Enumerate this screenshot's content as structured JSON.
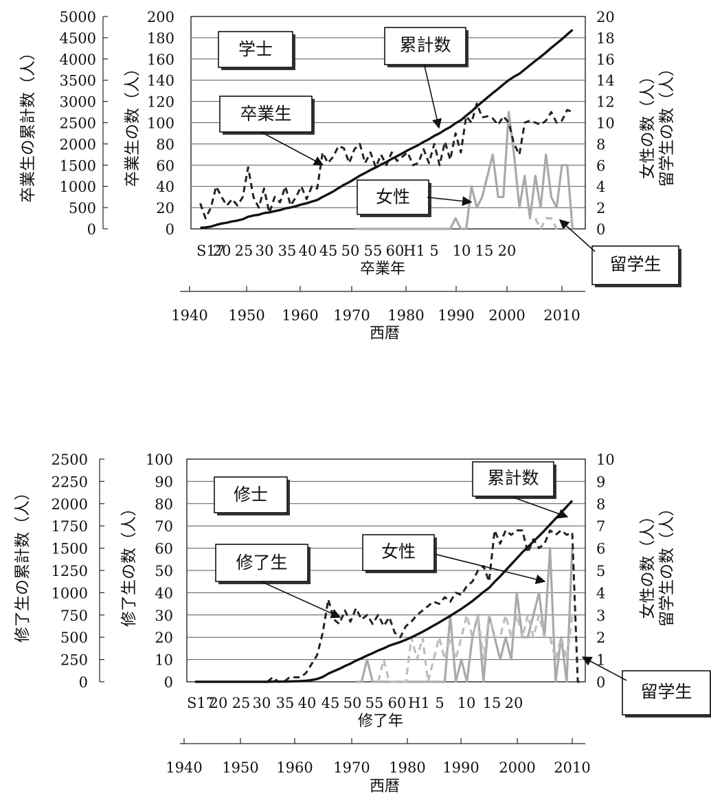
{
  "colors": {
    "graduates": "#222222",
    "cumulative": "#111111",
    "female": "#a9a9a9",
    "international": "#bdbdbd"
  },
  "chart_data": [
    {
      "type": "line",
      "title": "学士",
      "x_era_label": "卒業年",
      "x_year_label": "西暦",
      "era_ticks": [
        "S17",
        "20",
        "25",
        "30",
        "35",
        "40",
        "45",
        "50",
        "55",
        "60",
        "H1",
        "5",
        "10",
        "15",
        "20"
      ],
      "year_ticks": [
        "1940",
        "1950",
        "1960",
        "1970",
        "1980",
        "1990",
        "2000",
        "2010"
      ],
      "y_outer_label": "卒業生の累計数（人）",
      "y_outer_ticks": [
        "0",
        "500",
        "1000",
        "1500",
        "2000",
        "2500",
        "3000",
        "3500",
        "4000",
        "4500",
        "5000"
      ],
      "y_left_label": "卒業生の数（人）",
      "y_left_ticks": [
        "0",
        "20",
        "40",
        "60",
        "80",
        "100",
        "120",
        "140",
        "160",
        "180",
        "200"
      ],
      "y_right_label_1": "女性の数（人）",
      "y_right_label_2": "留学生の数（人）",
      "y_right_ticks": [
        "0",
        "2",
        "4",
        "6",
        "8",
        "10",
        "12",
        "14",
        "16",
        "18",
        "20"
      ],
      "x": [
        1942,
        1943,
        1944,
        1945,
        1946,
        1947,
        1948,
        1949,
        1950,
        1951,
        1952,
        1953,
        1954,
        1955,
        1956,
        1957,
        1958,
        1959,
        1960,
        1961,
        1962,
        1963,
        1964,
        1965,
        1966,
        1967,
        1968,
        1969,
        1970,
        1971,
        1972,
        1973,
        1974,
        1975,
        1976,
        1977,
        1978,
        1979,
        1980,
        1981,
        1982,
        1983,
        1984,
        1985,
        1986,
        1987,
        1988,
        1989,
        1990,
        1991,
        1992,
        1993,
        1994,
        1995,
        1996,
        1997,
        1998,
        1999,
        2000,
        2001,
        2002,
        2003,
        2004,
        2005,
        2006,
        2007,
        2008,
        2009,
        2010,
        2011,
        2012
      ],
      "series": [
        {
          "name": "卒業生",
          "axis": "left",
          "style": "dashed",
          "values": [
            24,
            10,
            20,
            40,
            30,
            22,
            28,
            22,
            30,
            58,
            30,
            20,
            38,
            15,
            30,
            25,
            40,
            22,
            30,
            40,
            28,
            40,
            38,
            72,
            62,
            68,
            78,
            76,
            62,
            75,
            80,
            62,
            72,
            58,
            70,
            60,
            72,
            64,
            68,
            72,
            60,
            62,
            75,
            62,
            80,
            60,
            82,
            65,
            90,
            72,
            106,
            100,
            118,
            105,
            106,
            104,
            98,
            106,
            100,
            80,
            70,
            100,
            102,
            100,
            98,
            102,
            110,
            100,
            102,
            112,
            110
          ]
        },
        {
          "name": "累計数",
          "axis": "outer",
          "style": "solid",
          "values": [
            24,
            34,
            54,
            94,
            124,
            146,
            174,
            196,
            226,
            284,
            314,
            334,
            372,
            387,
            417,
            442,
            482,
            504,
            534,
            574,
            602,
            642,
            680,
            752,
            814,
            882,
            960,
            1036,
            1098,
            1173,
            1253,
            1315,
            1387,
            1445,
            1515,
            1575,
            1647,
            1711,
            1779,
            1851,
            1911,
            1973,
            2048,
            2110,
            2190,
            2250,
            2332,
            2397,
            2487,
            2559,
            2665,
            2765,
            2883,
            2988,
            3094,
            3198,
            3296,
            3402,
            3502,
            3582,
            3652,
            3752,
            3854,
            3954,
            4052,
            4154,
            4264,
            4364,
            4466,
            4578,
            4688
          ]
        },
        {
          "name": "女性",
          "axis": "right",
          "style": "solid",
          "values": [
            null,
            null,
            null,
            null,
            null,
            null,
            null,
            null,
            null,
            null,
            null,
            null,
            null,
            null,
            null,
            null,
            null,
            null,
            null,
            null,
            null,
            null,
            null,
            null,
            null,
            null,
            null,
            null,
            null,
            0,
            0,
            0,
            0,
            0,
            0,
            0,
            0,
            0,
            0,
            0,
            0,
            0,
            0,
            0,
            0,
            0,
            0,
            0,
            1,
            0,
            0,
            4,
            2,
            3,
            5,
            7,
            3,
            3,
            11,
            7,
            2,
            5,
            1,
            5,
            2,
            7,
            3,
            2,
            6,
            6,
            0
          ]
        },
        {
          "name": "留学生",
          "axis": "right",
          "style": "dashed",
          "values": [
            null,
            null,
            null,
            null,
            null,
            null,
            null,
            null,
            null,
            null,
            null,
            null,
            null,
            null,
            null,
            null,
            null,
            null,
            null,
            null,
            null,
            null,
            null,
            null,
            null,
            null,
            null,
            null,
            null,
            null,
            null,
            null,
            null,
            null,
            null,
            null,
            null,
            null,
            null,
            null,
            null,
            null,
            null,
            null,
            null,
            null,
            null,
            null,
            null,
            null,
            null,
            null,
            null,
            null,
            null,
            null,
            null,
            null,
            null,
            null,
            null,
            null,
            null,
            1,
            0,
            1,
            1,
            0,
            0,
            0,
            1
          ]
        }
      ],
      "callouts": {
        "title": "学士",
        "cumulative": "累計数",
        "graduates": "卒業生",
        "female": "女性",
        "international": "留学生"
      }
    },
    {
      "type": "line",
      "title": "修士",
      "x_era_label": "修了年",
      "x_year_label": "西暦",
      "era_ticks": [
        "S17",
        "20",
        "25",
        "30",
        "35",
        "40",
        "45",
        "50",
        "55",
        "60",
        "H1",
        "5",
        "10",
        "15",
        "20"
      ],
      "year_ticks": [
        "1940",
        "1950",
        "1960",
        "1970",
        "1980",
        "1990",
        "2000",
        "2010"
      ],
      "y_outer_label": "修了生の累計数（人）",
      "y_outer_ticks": [
        "0",
        "250",
        "500",
        "750",
        "1000",
        "1250",
        "1500",
        "1750",
        "2000",
        "2250",
        "2500"
      ],
      "y_left_label": "修了生の数（人）",
      "y_left_ticks": [
        "0",
        "10",
        "20",
        "30",
        "40",
        "50",
        "60",
        "70",
        "80",
        "90",
        "100"
      ],
      "y_right_label_1": "女性の数（人）",
      "y_right_label_2": "留学生の数（人）",
      "y_right_ticks": [
        "0",
        "1",
        "2",
        "3",
        "4",
        "5",
        "6",
        "7",
        "8",
        "9",
        "10"
      ],
      "x": [
        1942,
        1943,
        1944,
        1945,
        1946,
        1947,
        1948,
        1949,
        1950,
        1951,
        1952,
        1953,
        1954,
        1955,
        1956,
        1957,
        1958,
        1959,
        1960,
        1961,
        1962,
        1963,
        1964,
        1965,
        1966,
        1967,
        1968,
        1969,
        1970,
        1971,
        1972,
        1973,
        1974,
        1975,
        1976,
        1977,
        1978,
        1979,
        1980,
        1981,
        1982,
        1983,
        1984,
        1985,
        1986,
        1987,
        1988,
        1989,
        1990,
        1991,
        1992,
        1993,
        1994,
        1995,
        1996,
        1997,
        1998,
        1999,
        2000,
        2001,
        2002,
        2003,
        2004,
        2005,
        2006,
        2007,
        2008,
        2009,
        2010,
        2011,
        2012
      ],
      "series": [
        {
          "name": "修了生",
          "axis": "left",
          "style": "dashed",
          "values": [
            0,
            0,
            0,
            0,
            0,
            0,
            0,
            0,
            0,
            0,
            0,
            0,
            0,
            0,
            2,
            0,
            0,
            2,
            2,
            2,
            4,
            8,
            12,
            22,
            37,
            28,
            26,
            32,
            27,
            33,
            28,
            30,
            26,
            30,
            25,
            29,
            22,
            20,
            25,
            27,
            30,
            32,
            34,
            36,
            35,
            38,
            36,
            40,
            39,
            43,
            45,
            50,
            52,
            45,
            68,
            62,
            68,
            66,
            68,
            68,
            58,
            64,
            60,
            62,
            68,
            66,
            68,
            66,
            67,
            0,
            0
          ]
        },
        {
          "name": "累計数",
          "axis": "outer",
          "style": "solid",
          "values": [
            0,
            0,
            0,
            0,
            0,
            0,
            0,
            0,
            0,
            0,
            0,
            0,
            0,
            0,
            2,
            2,
            2,
            4,
            6,
            8,
            12,
            20,
            32,
            54,
            91,
            119,
            145,
            177,
            204,
            237,
            265,
            295,
            321,
            351,
            376,
            405,
            427,
            447,
            472,
            499,
            529,
            561,
            595,
            631,
            666,
            704,
            740,
            780,
            819,
            862,
            907,
            957,
            1009,
            1054,
            1122,
            1184,
            1252,
            1318,
            1386,
            1454,
            1512,
            1576,
            1636,
            1698,
            1766,
            1832,
            1900,
            1966,
            2033,
            null,
            null
          ]
        },
        {
          "name": "女性",
          "axis": "right",
          "style": "solid",
          "values": [
            null,
            null,
            null,
            null,
            null,
            null,
            null,
            null,
            null,
            null,
            null,
            null,
            null,
            null,
            null,
            null,
            null,
            null,
            null,
            null,
            null,
            null,
            null,
            null,
            null,
            null,
            null,
            null,
            null,
            0,
            0,
            1,
            0,
            0,
            0,
            0,
            0,
            0,
            0,
            0,
            0,
            0,
            0,
            0,
            0,
            0,
            3,
            0,
            1,
            0,
            2,
            3,
            0,
            3,
            2,
            1,
            2,
            1,
            4,
            2,
            2,
            3,
            4,
            2,
            6,
            0,
            2,
            0,
            6,
            null,
            null
          ]
        },
        {
          "name": "留学生",
          "axis": "right",
          "style": "dashed",
          "values": [
            null,
            null,
            null,
            null,
            null,
            null,
            null,
            null,
            null,
            null,
            null,
            null,
            null,
            null,
            null,
            null,
            null,
            null,
            null,
            null,
            null,
            null,
            null,
            null,
            null,
            null,
            null,
            null,
            null,
            null,
            null,
            null,
            null,
            0,
            1,
            0,
            0,
            0,
            0,
            2,
            1,
            2,
            0,
            1,
            2,
            1,
            2,
            1,
            2,
            3,
            2,
            3,
            1,
            3,
            2,
            2,
            3,
            2,
            3,
            2,
            3,
            2,
            3,
            2,
            2,
            1,
            2,
            1,
            3,
            null,
            null
          ]
        }
      ],
      "callouts": {
        "title": "修士",
        "cumulative": "累計数",
        "graduates": "修了生",
        "female": "女性",
        "international": "留学生"
      }
    }
  ]
}
